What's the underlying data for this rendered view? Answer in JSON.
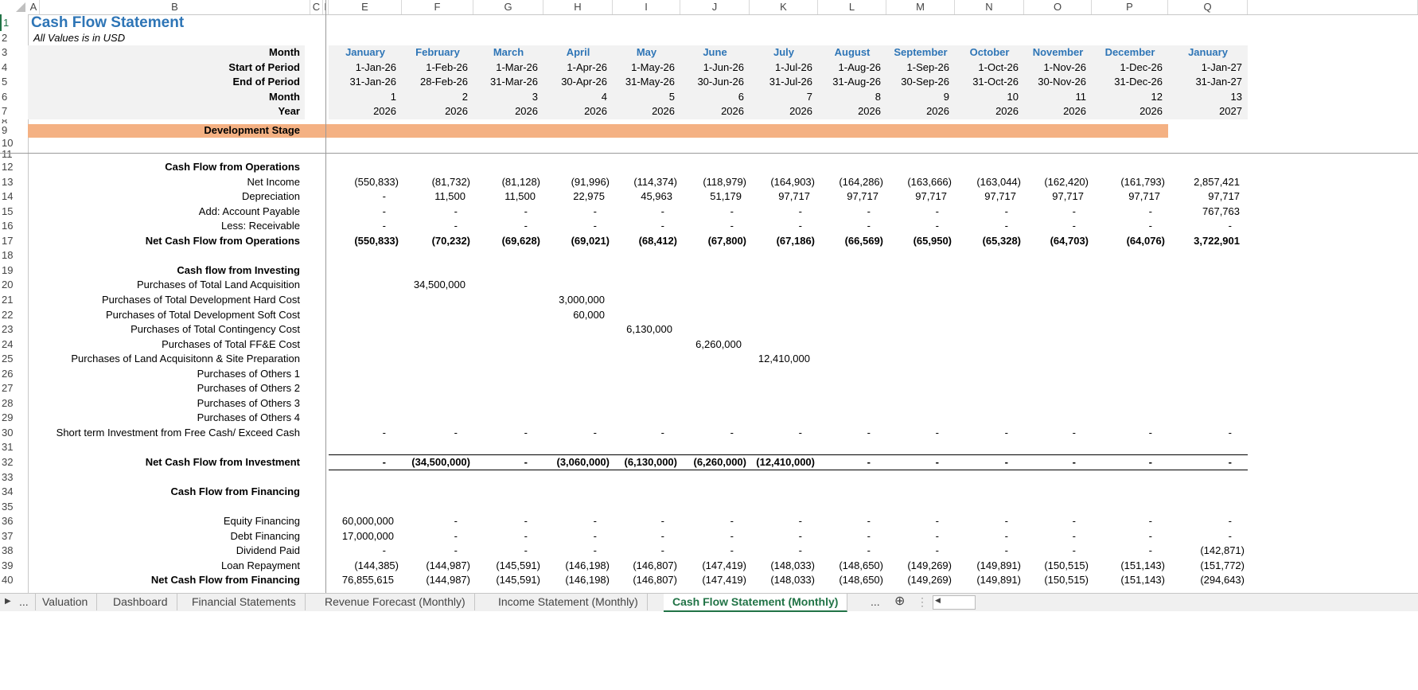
{
  "column_headers": [
    "A",
    "B",
    "C",
    "I",
    "E",
    "F",
    "G",
    "H",
    "I",
    "J",
    "K",
    "L",
    "M",
    "N",
    "O",
    "P",
    "Q"
  ],
  "title": "Cash Flow Statement",
  "subtitle": "All Values is in USD",
  "header_rows": {
    "labels": [
      "Month",
      "Start of Period",
      "End of Period",
      "Month",
      "Year"
    ],
    "months": [
      "January",
      "February",
      "March",
      "April",
      "May",
      "June",
      "July",
      "August",
      "September",
      "October",
      "November",
      "December",
      "January"
    ],
    "start": [
      "1-Jan-26",
      "1-Feb-26",
      "1-Mar-26",
      "1-Apr-26",
      "1-May-26",
      "1-Jun-26",
      "1-Jul-26",
      "1-Aug-26",
      "1-Sep-26",
      "1-Oct-26",
      "1-Nov-26",
      "1-Dec-26",
      "1-Jan-27"
    ],
    "end": [
      "31-Jan-26",
      "28-Feb-26",
      "31-Mar-26",
      "30-Apr-26",
      "31-May-26",
      "30-Jun-26",
      "31-Jul-26",
      "31-Aug-26",
      "30-Sep-26",
      "31-Oct-26",
      "30-Nov-26",
      "31-Dec-26",
      "31-Jan-27"
    ],
    "month_no": [
      "1",
      "2",
      "3",
      "4",
      "5",
      "6",
      "7",
      "8",
      "9",
      "10",
      "11",
      "12",
      "13"
    ],
    "year": [
      "2026",
      "2026",
      "2026",
      "2026",
      "2026",
      "2026",
      "2026",
      "2026",
      "2026",
      "2026",
      "2026",
      "2026",
      "2027"
    ]
  },
  "stage_label": "Development Stage",
  "rows": [
    {
      "row": 12,
      "label": "Cash Flow from Operations",
      "values": []
    },
    {
      "row": 13,
      "label": "Net Income",
      "values": [
        "(550,833)",
        "(81,732)",
        "(81,128)",
        "(91,996)",
        "(114,374)",
        "(118,979)",
        "(164,903)",
        "(164,286)",
        "(163,666)",
        "(163,044)",
        "(162,420)",
        "(161,793)",
        "2,857,421"
      ]
    },
    {
      "row": 14,
      "label": "Depreciation",
      "values": [
        "-",
        "11,500",
        "11,500",
        "22,975",
        "45,963",
        "51,179",
        "97,717",
        "97,717",
        "97,717",
        "97,717",
        "97,717",
        "97,717",
        "97,717"
      ]
    },
    {
      "row": 15,
      "label": "Add: Account Payable",
      "values": [
        "-",
        "-",
        "-",
        "-",
        "-",
        "-",
        "-",
        "-",
        "-",
        "-",
        "-",
        "-",
        "767,763"
      ]
    },
    {
      "row": 16,
      "label": "Less: Receivable",
      "values": [
        "-",
        "-",
        "-",
        "-",
        "-",
        "-",
        "-",
        "-",
        "-",
        "-",
        "-",
        "-",
        "-"
      ]
    },
    {
      "row": 17,
      "label": "Net Cash Flow from Operations",
      "values": [
        "(550,833)",
        "(70,232)",
        "(69,628)",
        "(69,021)",
        "(68,412)",
        "(67,800)",
        "(67,186)",
        "(66,569)",
        "(65,950)",
        "(65,328)",
        "(64,703)",
        "(64,076)",
        "3,722,901"
      ]
    },
    {
      "row": 19,
      "label": "Cash flow from Investing",
      "values": []
    },
    {
      "row": 20,
      "label": "Purchases of Total Land Acquisition",
      "values": [
        "",
        "34,500,000",
        "",
        "",
        "",
        "",
        "",
        "",
        "",
        "",
        "",
        "",
        ""
      ]
    },
    {
      "row": 21,
      "label": "Purchases of Total Development Hard Cost",
      "values": [
        "",
        "",
        "",
        "3,000,000",
        "",
        "",
        "",
        "",
        "",
        "",
        "",
        "",
        ""
      ]
    },
    {
      "row": 22,
      "label": "Purchases of Total Development Soft Cost",
      "values": [
        "",
        "",
        "",
        "60,000",
        "",
        "",
        "",
        "",
        "",
        "",
        "",
        "",
        ""
      ]
    },
    {
      "row": 23,
      "label": "Purchases of Total Contingency Cost",
      "values": [
        "",
        "",
        "",
        "",
        "6,130,000",
        "",
        "",
        "",
        "",
        "",
        "",
        "",
        ""
      ]
    },
    {
      "row": 24,
      "label": "Purchases of Total FF&E Cost",
      "values": [
        "",
        "",
        "",
        "",
        "",
        "6,260,000",
        "",
        "",
        "",
        "",
        "",
        "",
        ""
      ]
    },
    {
      "row": 25,
      "label": "Purchases of Land Acquisitonn & Site Preparation",
      "values": [
        "",
        "",
        "",
        "",
        "",
        "",
        "12,410,000",
        "",
        "",
        "",
        "",
        "",
        ""
      ]
    },
    {
      "row": 26,
      "label": "Purchases of Others 1",
      "values": []
    },
    {
      "row": 27,
      "label": "Purchases of Others 2",
      "values": []
    },
    {
      "row": 28,
      "label": "Purchases of Others 3",
      "values": []
    },
    {
      "row": 29,
      "label": "Purchases of Others 4",
      "values": []
    },
    {
      "row": 30,
      "label": "Short term Investment from Free Cash/ Exceed Cash",
      "values": [
        "-",
        "-",
        "-",
        "-",
        "-",
        "-",
        "-",
        "-",
        "-",
        "-",
        "-",
        "-",
        "-"
      ]
    },
    {
      "row": 32,
      "label": "Net Cash Flow from Investment",
      "values": [
        "-",
        "(34,500,000)",
        "-",
        "(3,060,000)",
        "(6,130,000)",
        "(6,260,000)",
        "(12,410,000)",
        "-",
        "-",
        "-",
        "-",
        "-",
        "-"
      ]
    },
    {
      "row": 34,
      "label": "Cash Flow from Financing",
      "values": []
    },
    {
      "row": 36,
      "label": "Equity Financing",
      "values": [
        "60,000,000",
        "-",
        "-",
        "-",
        "-",
        "-",
        "-",
        "-",
        "-",
        "-",
        "-",
        "-",
        "-"
      ]
    },
    {
      "row": 37,
      "label": "Debt Financing",
      "values": [
        "17,000,000",
        "-",
        "-",
        "-",
        "-",
        "-",
        "-",
        "-",
        "-",
        "-",
        "-",
        "-",
        "-"
      ]
    },
    {
      "row": 38,
      "label": "Dividend  Paid",
      "values": [
        "-",
        "-",
        "-",
        "-",
        "-",
        "-",
        "-",
        "-",
        "-",
        "-",
        "-",
        "-",
        "(142,871)"
      ]
    },
    {
      "row": 39,
      "label": "Loan Repayment",
      "values": [
        "(144,385)",
        "(144,987)",
        "(145,591)",
        "(146,198)",
        "(146,807)",
        "(147,419)",
        "(148,033)",
        "(148,650)",
        "(149,269)",
        "(149,891)",
        "(150,515)",
        "(151,143)",
        "(151,772)"
      ]
    },
    {
      "row": 40,
      "label": "Net Cash Flow from Financing",
      "values": [
        "76,855,615",
        "(144,987)",
        "(145,591)",
        "(146,198)",
        "(146,807)",
        "(147,419)",
        "(148,033)",
        "(148,650)",
        "(149,269)",
        "(149,891)",
        "(150,515)",
        "(151,143)",
        "(294,643)"
      ]
    }
  ],
  "sheet_tabs": {
    "nav_more": "...",
    "tabs": [
      "Valuation",
      "Dashboard",
      "Financial Statements",
      "Revenue Forecast (Monthly)",
      "Income Statement (Monthly)",
      "Cash Flow Statement (Monthly)"
    ],
    "active": "Cash Flow Statement (Monthly)",
    "trailing_more": "...",
    "add_icon": "plus-circle-icon"
  },
  "colors": {
    "title": "#2e75b6",
    "stage_band": "#f4b183",
    "header_band": "#f2f2f2",
    "active_tab": "#217346"
  }
}
